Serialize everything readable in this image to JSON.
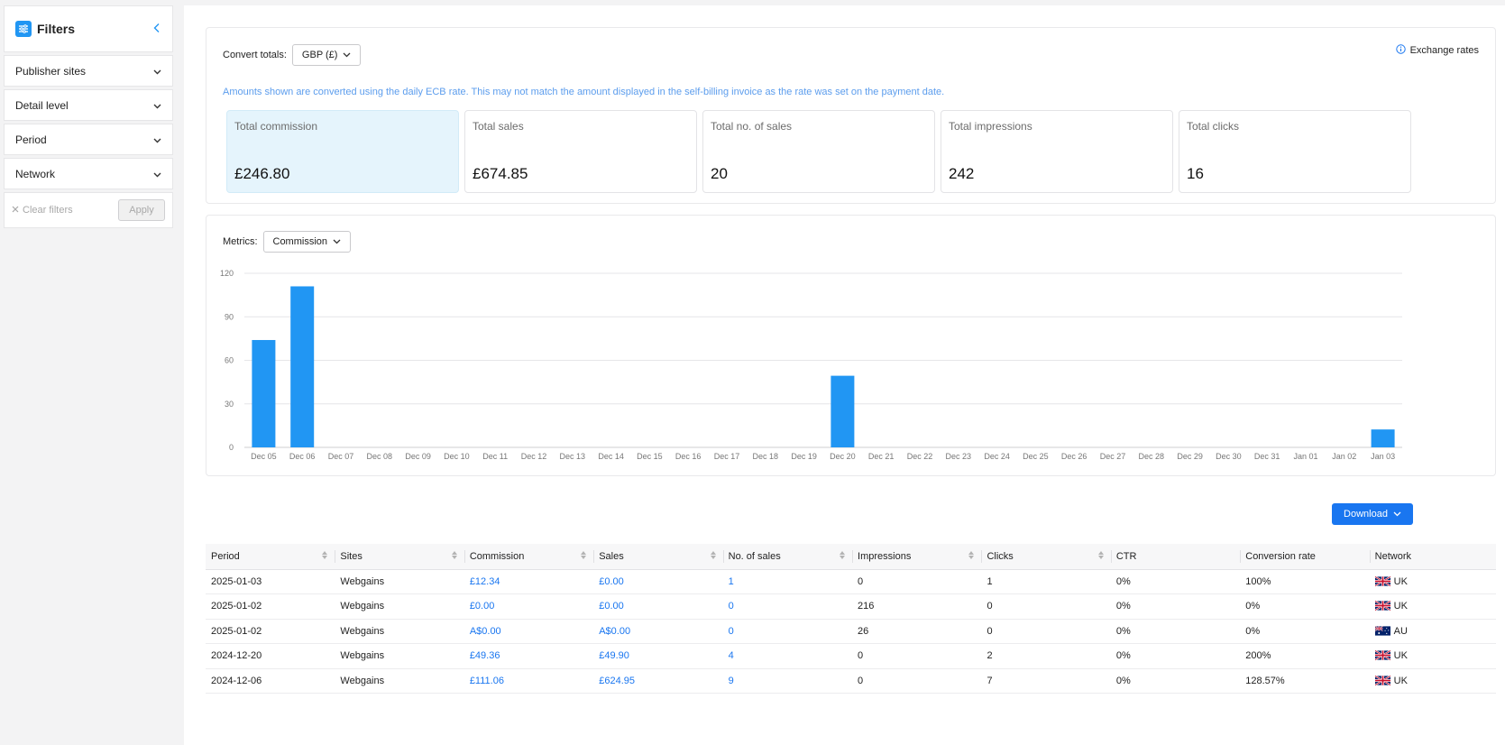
{
  "sidebar": {
    "title": "Filters",
    "items": [
      {
        "label": "Publisher sites"
      },
      {
        "label": "Detail level"
      },
      {
        "label": "Period"
      },
      {
        "label": "Network"
      }
    ],
    "clear_label": "Clear filters",
    "apply_label": "Apply"
  },
  "totals": {
    "convert_label": "Convert totals:",
    "currency": "GBP (£)",
    "exchange_label": "Exchange rates",
    "note": "Amounts shown are converted using the daily ECB rate. This may not match the amount displayed in the self-billing invoice as the rate was set on the payment date.",
    "stats": [
      {
        "label": "Total commission",
        "value": "£246.80"
      },
      {
        "label": "Total sales",
        "value": "£674.85"
      },
      {
        "label": "Total no. of sales",
        "value": "20"
      },
      {
        "label": "Total impressions",
        "value": "242"
      },
      {
        "label": "Total clicks",
        "value": "16"
      }
    ]
  },
  "metrics": {
    "label": "Metrics:",
    "selected": "Commission"
  },
  "chart_data": {
    "type": "bar",
    "categories": [
      "Dec 05",
      "Dec 06",
      "Dec 07",
      "Dec 08",
      "Dec 09",
      "Dec 10",
      "Dec 11",
      "Dec 12",
      "Dec 13",
      "Dec 14",
      "Dec 15",
      "Dec 16",
      "Dec 17",
      "Dec 18",
      "Dec 19",
      "Dec 20",
      "Dec 21",
      "Dec 22",
      "Dec 23",
      "Dec 24",
      "Dec 25",
      "Dec 26",
      "Dec 27",
      "Dec 28",
      "Dec 29",
      "Dec 30",
      "Dec 31",
      "Jan 01",
      "Jan 02",
      "Jan 03"
    ],
    "values": [
      74,
      111,
      0,
      0,
      0,
      0,
      0,
      0,
      0,
      0,
      0,
      0,
      0,
      0,
      0,
      49.36,
      0,
      0,
      0,
      0,
      0,
      0,
      0,
      0,
      0,
      0,
      0,
      0,
      0,
      12.34
    ],
    "yticks": [
      0,
      30,
      60,
      90,
      120
    ],
    "ylim": [
      0,
      120
    ],
    "grid": true,
    "color": "#2196f3"
  },
  "download_label": "Download",
  "table": {
    "headers": [
      "Period",
      "Sites",
      "Commission",
      "Sales",
      "No. of sales",
      "Impressions",
      "Clicks",
      "CTR",
      "Conversion rate",
      "Network"
    ],
    "rows": [
      {
        "period": "2025-01-03",
        "site": "Webgains",
        "commission": "£12.34",
        "sales": "£0.00",
        "num_sales": "1",
        "impressions": "0",
        "clicks": "1",
        "ctr": "0%",
        "conversion": "100%",
        "network": "UK",
        "flag": "uk"
      },
      {
        "period": "2025-01-02",
        "site": "Webgains",
        "commission": "£0.00",
        "sales": "£0.00",
        "num_sales": "0",
        "impressions": "216",
        "clicks": "0",
        "ctr": "0%",
        "conversion": "0%",
        "network": "UK",
        "flag": "uk"
      },
      {
        "period": "2025-01-02",
        "site": "Webgains",
        "commission": "A$0.00",
        "sales": "A$0.00",
        "num_sales": "0",
        "impressions": "26",
        "clicks": "0",
        "ctr": "0%",
        "conversion": "0%",
        "network": "AU",
        "flag": "au"
      },
      {
        "period": "2024-12-20",
        "site": "Webgains",
        "commission": "£49.36",
        "sales": "£49.90",
        "num_sales": "4",
        "impressions": "0",
        "clicks": "2",
        "ctr": "0%",
        "conversion": "200%",
        "network": "UK",
        "flag": "uk"
      },
      {
        "period": "2024-12-06",
        "site": "Webgains",
        "commission": "£111.06",
        "sales": "£624.95",
        "num_sales": "9",
        "impressions": "0",
        "clicks": "7",
        "ctr": "0%",
        "conversion": "128.57%",
        "network": "UK",
        "flag": "uk"
      }
    ]
  }
}
